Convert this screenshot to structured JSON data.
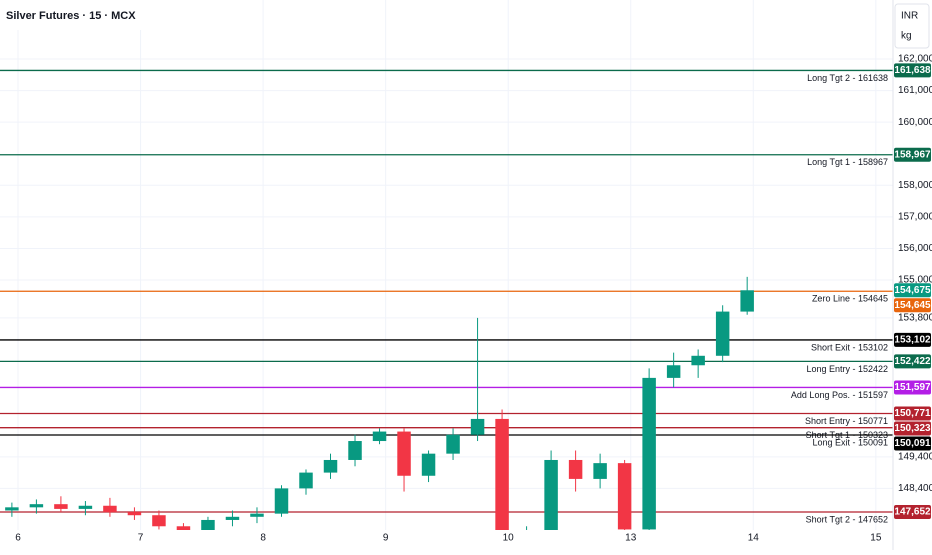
{
  "chart_data": {
    "type": "candlestick",
    "title": "Silver Futures · 15 · MCX",
    "currency": "INR",
    "unit": "kg",
    "up_color": "#089981",
    "down_color": "#f23645",
    "grid": true,
    "xlim": [
      -0.147,
      7.14
    ],
    "xticks": [
      {
        "value": 0,
        "label": "6"
      },
      {
        "value": 1,
        "label": "7"
      },
      {
        "value": 2,
        "label": "8"
      },
      {
        "value": 3,
        "label": "9"
      },
      {
        "value": 4,
        "label": "10"
      },
      {
        "value": 5,
        "label": "13"
      },
      {
        "value": 6,
        "label": "14"
      },
      {
        "value": 7,
        "label": "15"
      }
    ],
    "ylim": [
      147082,
      163869
    ],
    "yticks": [
      {
        "value": 162000,
        "label": "162,000"
      },
      {
        "value": 161000,
        "label": "161,000"
      },
      {
        "value": 160000,
        "label": "160,000"
      },
      {
        "value": 158000,
        "label": "158,000"
      },
      {
        "value": 157000,
        "label": "157,000"
      },
      {
        "value": 156000,
        "label": "156,000"
      },
      {
        "value": 155000,
        "label": "155,000"
      },
      {
        "value": 153800,
        "label": "153,800"
      },
      {
        "value": 149400,
        "label": "149,400"
      },
      {
        "value": 148400,
        "label": "148,400"
      }
    ],
    "x": [
      -0.05,
      0.15,
      0.35,
      0.55,
      0.75,
      0.95,
      1.15,
      1.35,
      1.55,
      1.75,
      1.95,
      2.15,
      2.35,
      2.55,
      2.75,
      2.95,
      3.15,
      3.35,
      3.55,
      3.75,
      3.95,
      4.15,
      4.35,
      4.55,
      4.75,
      4.95,
      5.15,
      5.35,
      5.55,
      5.75,
      5.95
    ],
    "open": [
      147700,
      147800,
      147900,
      147750,
      147850,
      147650,
      147550,
      147200,
      146800,
      147400,
      147500,
      147600,
      148400,
      148900,
      149300,
      149900,
      150200,
      148800,
      149500,
      150100,
      150600,
      146800,
      147000,
      149300,
      148700,
      149200,
      147100,
      151900,
      152300,
      152600,
      154000
    ],
    "high": [
      147950,
      148050,
      148150,
      148000,
      148100,
      147800,
      147700,
      147300,
      147500,
      147700,
      147800,
      148500,
      149000,
      149500,
      150100,
      150300,
      150300,
      149600,
      150300,
      153800,
      150900,
      147200,
      149600,
      149600,
      149500,
      149300,
      152200,
      152700,
      152800,
      154200,
      155100
    ],
    "low": [
      147500,
      147600,
      147650,
      147550,
      147500,
      147400,
      147100,
      146700,
      146600,
      147200,
      147300,
      147500,
      148200,
      148700,
      149100,
      149800,
      148300,
      148600,
      149300,
      149900,
      146500,
      146500,
      146900,
      148300,
      148400,
      146800,
      147000,
      151600,
      151900,
      152400,
      153900
    ],
    "close": [
      147800,
      147900,
      147750,
      147850,
      147650,
      147550,
      147200,
      146800,
      147400,
      147500,
      147600,
      148400,
      148900,
      149300,
      149900,
      150200,
      148800,
      149500,
      150100,
      150600,
      146800,
      147000,
      149300,
      148700,
      149200,
      147100,
      151900,
      152300,
      152600,
      154000,
      154675
    ],
    "last_price": {
      "value": 154675,
      "label": "154,675",
      "color": "#089981"
    },
    "levels": [
      {
        "label": "Long Tgt 2 - 161638",
        "value": 161638,
        "value_label": "161,638",
        "color": "#0b6b4c"
      },
      {
        "label": "Long Tgt 1 - 158967",
        "value": 158967,
        "value_label": "158,967",
        "color": "#0b6b4c"
      },
      {
        "label": "Zero Line - 154645",
        "value": 154645,
        "value_label": "154,645",
        "color": "#e8650c"
      },
      {
        "label": "Short Exit - 153102",
        "value": 153102,
        "value_label": "153,102",
        "color": "#000000"
      },
      {
        "label": "Long Entry - 152422",
        "value": 152422,
        "value_label": "152,422",
        "color": "#0b6b4c"
      },
      {
        "label": "Add Long Pos. - 151597",
        "value": 151597,
        "value_label": "151,597",
        "color": "#b31ee6"
      },
      {
        "label": "Short Entry - 150771",
        "value": 150771,
        "value_label": "150,771",
        "color": "#b3222e"
      },
      {
        "label": "Short Tgt 1 - 150323",
        "value": 150323,
        "value_label": "150,323",
        "color": "#b3222e"
      },
      {
        "label": "Long Exit - 150091",
        "value": 150091,
        "value_label": "150,091",
        "color": "#000000"
      },
      {
        "label": "Short Tgt 2 - 147652",
        "value": 147652,
        "value_label": "147,652",
        "color": "#b3222e"
      }
    ]
  }
}
